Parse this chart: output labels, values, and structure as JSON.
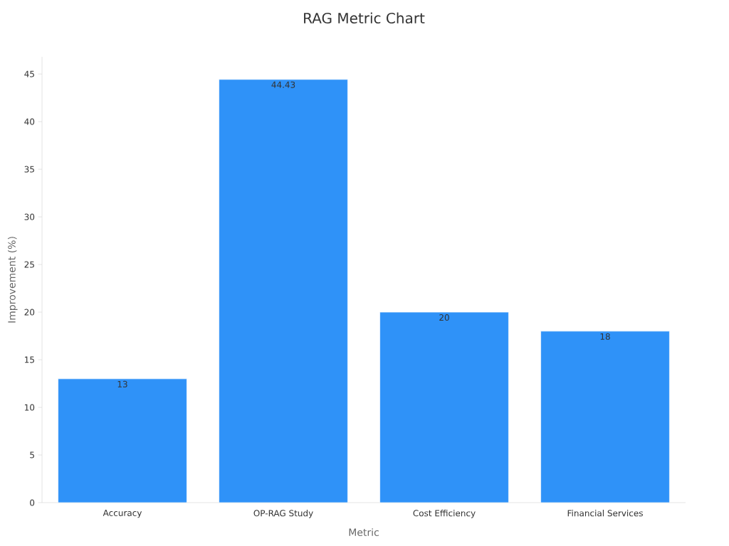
{
  "chart_data": {
    "type": "bar",
    "title": "RAG Metric Chart",
    "xlabel": "Metric",
    "ylabel": "Improvement (%)",
    "categories": [
      "Accuracy",
      "OP-RAG Study",
      "Cost Efficiency",
      "Financial Services"
    ],
    "values": [
      13,
      44.43,
      20,
      18
    ],
    "color": "#2f92f8",
    "ylim": [
      0,
      46.8
    ],
    "yticks": [
      0,
      5,
      10,
      15,
      20,
      25,
      30,
      35,
      40,
      45
    ],
    "data_labels": true,
    "grid": false
  }
}
